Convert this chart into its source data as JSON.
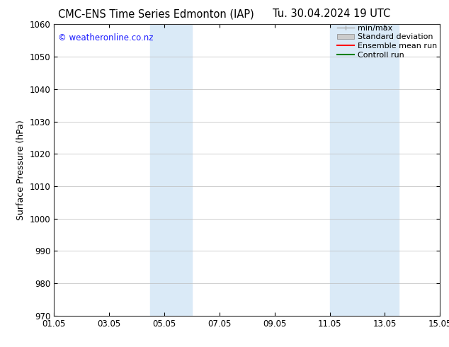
{
  "title_left": "CMC-ENS Time Series Edmonton (IAP)",
  "title_right": "Tu. 30.04.2024 19 UTC",
  "ylabel": "Surface Pressure (hPa)",
  "xlabel_ticks": [
    "01.05",
    "03.05",
    "05.05",
    "07.05",
    "09.05",
    "11.05",
    "13.05",
    "15.05"
  ],
  "xlim": [
    0,
    14
  ],
  "ylim": [
    970,
    1060
  ],
  "yticks": [
    970,
    980,
    990,
    1000,
    1010,
    1020,
    1030,
    1040,
    1050,
    1060
  ],
  "x_tick_positions": [
    0,
    2,
    4,
    6,
    8,
    10,
    12,
    14
  ],
  "shaded_regions": [
    {
      "x_start": 3.5,
      "x_end": 5.0
    },
    {
      "x_start": 10.0,
      "x_end": 12.5
    }
  ],
  "shade_color": "#daeaf7",
  "watermark": "© weatheronline.co.nz",
  "watermark_color": "#1a1aff",
  "legend_entries": [
    {
      "label": "min/max",
      "color": "#aaaaaa",
      "style": "minmax"
    },
    {
      "label": "Standard deviation",
      "color": "#cccccc",
      "style": "stddev"
    },
    {
      "label": "Ensemble mean run",
      "color": "#ff0000",
      "style": "line"
    },
    {
      "label": "Controll run",
      "color": "#008000",
      "style": "line"
    }
  ],
  "grid_color": "#bbbbbb",
  "bg_color": "#ffffff",
  "tick_label_fontsize": 8.5,
  "title_fontsize": 10.5,
  "ylabel_fontsize": 9,
  "watermark_fontsize": 8.5,
  "legend_fontsize": 8
}
